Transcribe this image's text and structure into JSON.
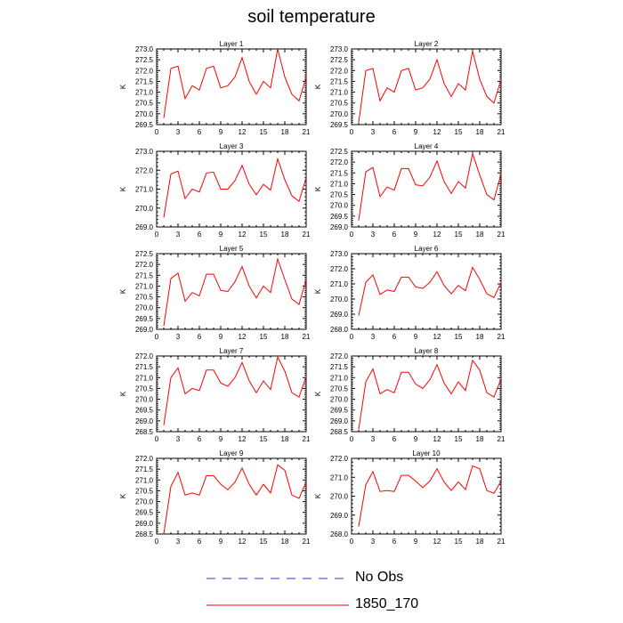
{
  "title": "soil temperature",
  "chart_data": {
    "type": "line",
    "x": [
      1,
      2,
      3,
      4,
      5,
      6,
      7,
      8,
      9,
      10,
      11,
      12,
      13,
      14,
      15,
      16,
      17,
      18,
      19,
      20,
      21
    ],
    "xlim": [
      0,
      21
    ],
    "xticks": [
      0,
      3,
      6,
      9,
      12,
      15,
      18,
      21
    ],
    "ylabel": "K",
    "series_name": "1850_170",
    "series_color": "#ff0000",
    "legend": [
      {
        "label": "No Obs",
        "color": "#3333cc",
        "style": "dashed"
      },
      {
        "label": "1850_170",
        "color": "#ff0000",
        "style": "solid"
      }
    ],
    "panels": [
      {
        "title": "Layer 1",
        "ylim": [
          269.5,
          273.0
        ],
        "yticks": [
          269.5,
          270.0,
          270.5,
          271.0,
          271.5,
          272.0,
          272.5,
          273.0
        ],
        "tick_labels": [
          "269.5",
          "270.0",
          "270.5",
          "271.0",
          "271.5",
          "272.0",
          "272.5",
          "273.0"
        ],
        "values": [
          269.8,
          272.1,
          272.2,
          270.7,
          271.3,
          271.1,
          272.1,
          272.2,
          271.2,
          271.3,
          271.7,
          272.6,
          271.5,
          270.9,
          271.5,
          271.2,
          273.0,
          271.7,
          270.9,
          270.6,
          271.7
        ]
      },
      {
        "title": "Layer 2",
        "ylim": [
          269.5,
          273.0
        ],
        "yticks": [
          269.5,
          270.0,
          270.5,
          271.0,
          271.5,
          272.0,
          272.5,
          273.0
        ],
        "tick_labels": [
          "269.5",
          "270.0",
          "270.5",
          "271.0",
          "271.5",
          "272.0",
          "272.5",
          "273.0"
        ],
        "values": [
          269.6,
          272.0,
          272.1,
          270.6,
          271.2,
          271.0,
          272.0,
          272.1,
          271.1,
          271.2,
          271.6,
          272.5,
          271.4,
          270.8,
          271.4,
          271.1,
          272.9,
          271.6,
          270.8,
          270.5,
          271.6
        ]
      },
      {
        "title": "Layer 3",
        "ylim": [
          269.0,
          273.0
        ],
        "yticks": [
          269.0,
          270.0,
          271.0,
          272.0,
          273.0
        ],
        "tick_labels": [
          "269.0",
          "270.0",
          "271.0",
          "272.0",
          "273.0"
        ],
        "values": [
          269.5,
          271.8,
          271.95,
          270.5,
          271.0,
          270.85,
          271.85,
          271.9,
          271.0,
          271.0,
          271.45,
          272.25,
          271.25,
          270.7,
          271.25,
          270.95,
          272.6,
          271.5,
          270.65,
          270.35,
          271.6
        ]
      },
      {
        "title": "Layer 4",
        "ylim": [
          269.0,
          272.5
        ],
        "yticks": [
          269.0,
          269.5,
          270.0,
          270.5,
          271.0,
          271.5,
          272.0,
          272.5
        ],
        "tick_labels": [
          "269.0",
          "269.5",
          "270.0",
          "270.5",
          "271.0",
          "271.5",
          "272.0",
          "272.5"
        ],
        "values": [
          269.3,
          271.55,
          271.75,
          270.4,
          270.85,
          270.7,
          271.7,
          271.7,
          270.95,
          270.9,
          271.3,
          272.05,
          271.1,
          270.55,
          271.1,
          270.8,
          272.4,
          271.4,
          270.5,
          270.25,
          271.45
        ]
      },
      {
        "title": "Layer 5",
        "ylim": [
          269.0,
          272.5
        ],
        "yticks": [
          269.0,
          269.5,
          270.0,
          270.5,
          271.0,
          271.5,
          272.0,
          272.5
        ],
        "tick_labels": [
          "269.0",
          "269.5",
          "270.0",
          "270.5",
          "271.0",
          "271.5",
          "272.0",
          "272.5"
        ],
        "values": [
          269.15,
          271.35,
          271.6,
          270.3,
          270.7,
          270.55,
          271.55,
          271.55,
          270.8,
          270.75,
          271.2,
          271.9,
          271.0,
          270.45,
          271.0,
          270.7,
          272.25,
          271.3,
          270.4,
          270.15,
          271.3
        ]
      },
      {
        "title": "Layer 6",
        "ylim": [
          268.0,
          273.0
        ],
        "yticks": [
          268.0,
          269.0,
          270.0,
          271.0,
          272.0,
          273.0
        ],
        "tick_labels": [
          "268.0",
          "269.0",
          "270.0",
          "271.0",
          "272.0",
          "273.0"
        ],
        "values": [
          268.9,
          271.1,
          271.6,
          270.3,
          270.6,
          270.5,
          271.45,
          271.45,
          270.8,
          270.7,
          271.1,
          271.8,
          270.9,
          270.35,
          270.9,
          270.55,
          272.1,
          271.3,
          270.35,
          270.1,
          271.1
        ]
      },
      {
        "title": "Layer 7",
        "ylim": [
          268.5,
          272.0
        ],
        "yticks": [
          268.5,
          269.0,
          269.5,
          270.0,
          270.5,
          271.0,
          271.5,
          272.0
        ],
        "tick_labels": [
          "268.5",
          "269.0",
          "269.5",
          "270.0",
          "270.5",
          "271.0",
          "271.5",
          "272.0"
        ],
        "values": [
          268.8,
          271.0,
          271.45,
          270.25,
          270.5,
          270.4,
          271.35,
          271.35,
          270.75,
          270.6,
          271.0,
          271.7,
          270.85,
          270.3,
          270.85,
          270.45,
          271.95,
          271.3,
          270.3,
          270.1,
          271.05
        ]
      },
      {
        "title": "Layer 8",
        "ylim": [
          268.5,
          272.0
        ],
        "yticks": [
          268.5,
          269.0,
          269.5,
          270.0,
          270.5,
          271.0,
          271.5,
          272.0
        ],
        "tick_labels": [
          "268.5",
          "269.0",
          "269.5",
          "270.0",
          "270.5",
          "271.0",
          "271.5",
          "272.0"
        ],
        "values": [
          268.6,
          270.8,
          271.4,
          270.25,
          270.45,
          270.3,
          271.25,
          271.25,
          270.7,
          270.5,
          270.9,
          271.6,
          270.75,
          270.25,
          270.8,
          270.4,
          271.8,
          271.35,
          270.3,
          270.1,
          270.95
        ]
      },
      {
        "title": "Layer 9",
        "ylim": [
          268.5,
          272.0
        ],
        "yticks": [
          268.5,
          269.0,
          269.5,
          270.0,
          270.5,
          271.0,
          271.5,
          272.0
        ],
        "tick_labels": [
          "268.5",
          "269.0",
          "269.5",
          "270.0",
          "270.5",
          "271.0",
          "271.5",
          "272.0"
        ],
        "values": [
          268.5,
          270.7,
          271.35,
          270.3,
          270.4,
          270.3,
          271.2,
          271.2,
          270.8,
          270.55,
          270.9,
          271.55,
          270.8,
          270.3,
          270.8,
          270.4,
          271.7,
          271.45,
          270.3,
          270.15,
          270.9
        ]
      },
      {
        "title": "Layer 10",
        "ylim": [
          268.0,
          272.0
        ],
        "yticks": [
          268.0,
          269.0,
          270.0,
          271.0,
          272.0
        ],
        "tick_labels": [
          "268.0",
          "269.0",
          "270.0",
          "271.0",
          "272.0"
        ],
        "values": [
          268.4,
          270.6,
          271.3,
          270.25,
          270.3,
          270.25,
          271.1,
          271.1,
          270.8,
          270.45,
          270.8,
          271.45,
          270.75,
          270.3,
          270.75,
          270.35,
          271.6,
          271.45,
          270.3,
          270.15,
          270.8
        ]
      }
    ]
  }
}
